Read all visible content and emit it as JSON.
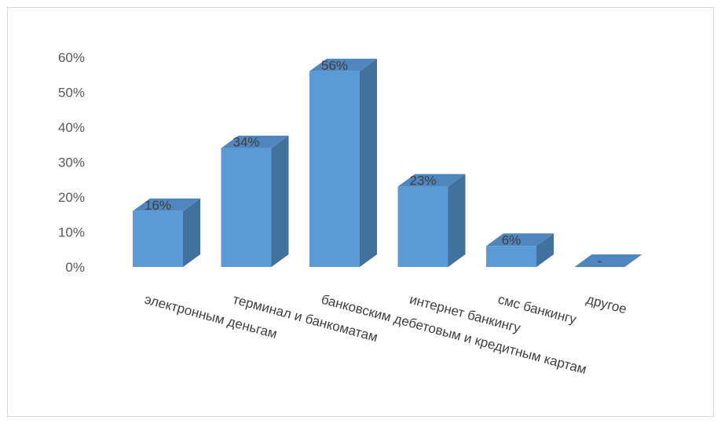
{
  "chart_data": {
    "type": "bar",
    "style": "3d-column",
    "title": "",
    "xlabel": "",
    "ylabel": "",
    "categories": [
      "электронным деньгам",
      "терминал и банкоматам",
      "банковским дебетовым и кредитным картам",
      "интернет банкингу",
      "смс банкингу",
      "другое"
    ],
    "values": [
      16,
      34,
      56,
      23,
      6,
      0
    ],
    "data_labels": [
      "16%",
      "34%",
      "56%",
      "23%",
      "6%",
      "-"
    ],
    "y_ticks": [
      "0%",
      "10%",
      "20%",
      "30%",
      "40%",
      "50%",
      "60%"
    ],
    "ylim": [
      0,
      60
    ],
    "grid": false,
    "legend": "none",
    "colors": {
      "front": "#5b9bd5",
      "top": "#4f86bd",
      "side": "#41719c"
    }
  }
}
